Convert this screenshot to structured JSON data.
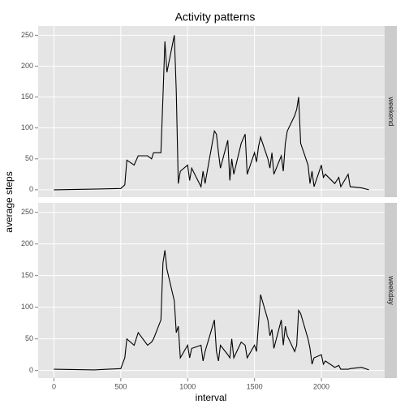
{
  "chart_data": {
    "type": "line",
    "title": "Activity patterns",
    "xlabel": "interval",
    "ylabel": "average steps",
    "x": [
      0,
      300,
      500,
      530,
      545,
      600,
      630,
      700,
      730,
      745,
      800,
      815,
      830,
      845,
      900,
      915,
      930,
      945,
      1000,
      1015,
      1030,
      1100,
      1115,
      1130,
      1200,
      1215,
      1230,
      1245,
      1300,
      1315,
      1330,
      1345,
      1400,
      1430,
      1445,
      1500,
      1515,
      1530,
      1545,
      1600,
      1615,
      1630,
      1645,
      1700,
      1715,
      1730,
      1745,
      1800,
      1815,
      1830,
      1845,
      1900,
      1915,
      1930,
      1945,
      2000,
      2015,
      2030,
      2100,
      2130,
      2145,
      2200,
      2215,
      2300,
      2355
    ],
    "series": [
      {
        "name": "weekend",
        "color": "#000000",
        "values": [
          0,
          1,
          2,
          8,
          48,
          40,
          55,
          55,
          50,
          60,
          60,
          150,
          240,
          190,
          250,
          160,
          10,
          30,
          40,
          15,
          35,
          5,
          30,
          10,
          95,
          90,
          60,
          35,
          80,
          15,
          50,
          25,
          75,
          90,
          25,
          60,
          45,
          70,
          85,
          50,
          35,
          60,
          25,
          55,
          30,
          75,
          95,
          120,
          130,
          150,
          75,
          40,
          10,
          30,
          5,
          40,
          20,
          25,
          10,
          20,
          5,
          25,
          5,
          3,
          0
        ]
      },
      {
        "name": "weekday",
        "color": "#000000",
        "values": [
          2,
          1,
          3,
          20,
          50,
          40,
          60,
          40,
          45,
          50,
          80,
          170,
          190,
          160,
          110,
          60,
          70,
          20,
          40,
          20,
          35,
          40,
          15,
          30,
          80,
          30,
          15,
          40,
          25,
          20,
          50,
          20,
          45,
          40,
          20,
          40,
          30,
          75,
          120,
          80,
          55,
          65,
          35,
          80,
          40,
          70,
          55,
          30,
          40,
          95,
          90,
          50,
          35,
          10,
          20,
          25,
          10,
          15,
          5,
          8,
          2,
          2,
          3,
          5,
          1
        ]
      }
    ],
    "xlim": [
      -118,
      2473
    ],
    "xticks": [
      0,
      500,
      1000,
      1500,
      2000
    ],
    "ylim": [
      -12,
      265
    ],
    "yticks": [
      0,
      50,
      100,
      150,
      200,
      250
    ],
    "grid": true
  }
}
